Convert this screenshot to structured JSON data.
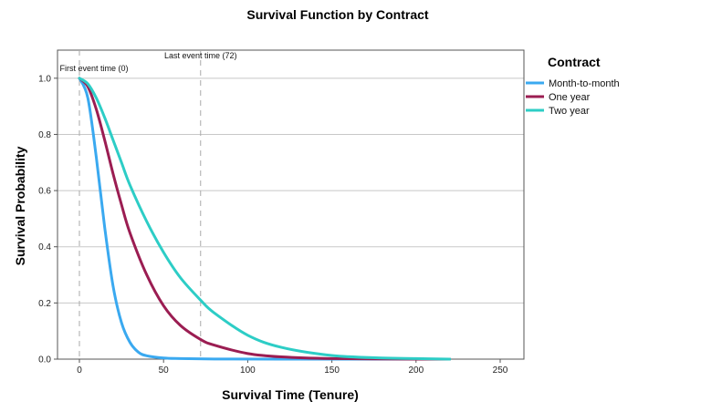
{
  "chart_data": {
    "type": "line",
    "title": "Survival Function by Contract",
    "xlabel": "Survival Time (Tenure)",
    "ylabel": "Survival Probability",
    "xlim": [
      -13,
      265
    ],
    "ylim": [
      0,
      1.1
    ],
    "x_ticks": [
      0,
      50,
      100,
      150,
      200,
      250
    ],
    "y_ticks": [
      0.0,
      0.2,
      0.4,
      0.6,
      0.8,
      1.0
    ],
    "grid": "horizontal",
    "legend": {
      "title": "Contract",
      "position": "right"
    },
    "annotations": [
      {
        "x": 0,
        "label": "First event time (0)"
      },
      {
        "x": 72,
        "label": "Last event time (72)"
      }
    ],
    "series": [
      {
        "name": "Month-to-month",
        "color": "#3aa9f0",
        "points": [
          [
            0,
            1.0
          ],
          [
            5,
            0.93
          ],
          [
            10,
            0.72
          ],
          [
            15,
            0.47
          ],
          [
            20,
            0.26
          ],
          [
            25,
            0.13
          ],
          [
            30,
            0.06
          ],
          [
            35,
            0.025
          ],
          [
            40,
            0.012
          ],
          [
            50,
            0.004
          ],
          [
            60,
            0.002
          ],
          [
            80,
            0.0005
          ],
          [
            120,
            0.0
          ],
          [
            220,
            0.0
          ]
        ]
      },
      {
        "name": "One year",
        "color": "#9b1d52",
        "points": [
          [
            0,
            1.0
          ],
          [
            5,
            0.97
          ],
          [
            10,
            0.89
          ],
          [
            15,
            0.78
          ],
          [
            20,
            0.66
          ],
          [
            25,
            0.55
          ],
          [
            30,
            0.45
          ],
          [
            40,
            0.3
          ],
          [
            50,
            0.19
          ],
          [
            60,
            0.12
          ],
          [
            72,
            0.07
          ],
          [
            80,
            0.05
          ],
          [
            100,
            0.02
          ],
          [
            120,
            0.008
          ],
          [
            150,
            0.002
          ],
          [
            200,
            0.0
          ],
          [
            220,
            0.0
          ]
        ]
      },
      {
        "name": "Two year",
        "color": "#2dcdc6",
        "points": [
          [
            0,
            1.0
          ],
          [
            5,
            0.98
          ],
          [
            10,
            0.93
          ],
          [
            15,
            0.86
          ],
          [
            20,
            0.78
          ],
          [
            25,
            0.7
          ],
          [
            30,
            0.62
          ],
          [
            40,
            0.49
          ],
          [
            50,
            0.38
          ],
          [
            60,
            0.29
          ],
          [
            72,
            0.21
          ],
          [
            80,
            0.165
          ],
          [
            100,
            0.085
          ],
          [
            120,
            0.042
          ],
          [
            150,
            0.013
          ],
          [
            180,
            0.004
          ],
          [
            200,
            0.002
          ],
          [
            220,
            0.0
          ]
        ]
      }
    ]
  }
}
